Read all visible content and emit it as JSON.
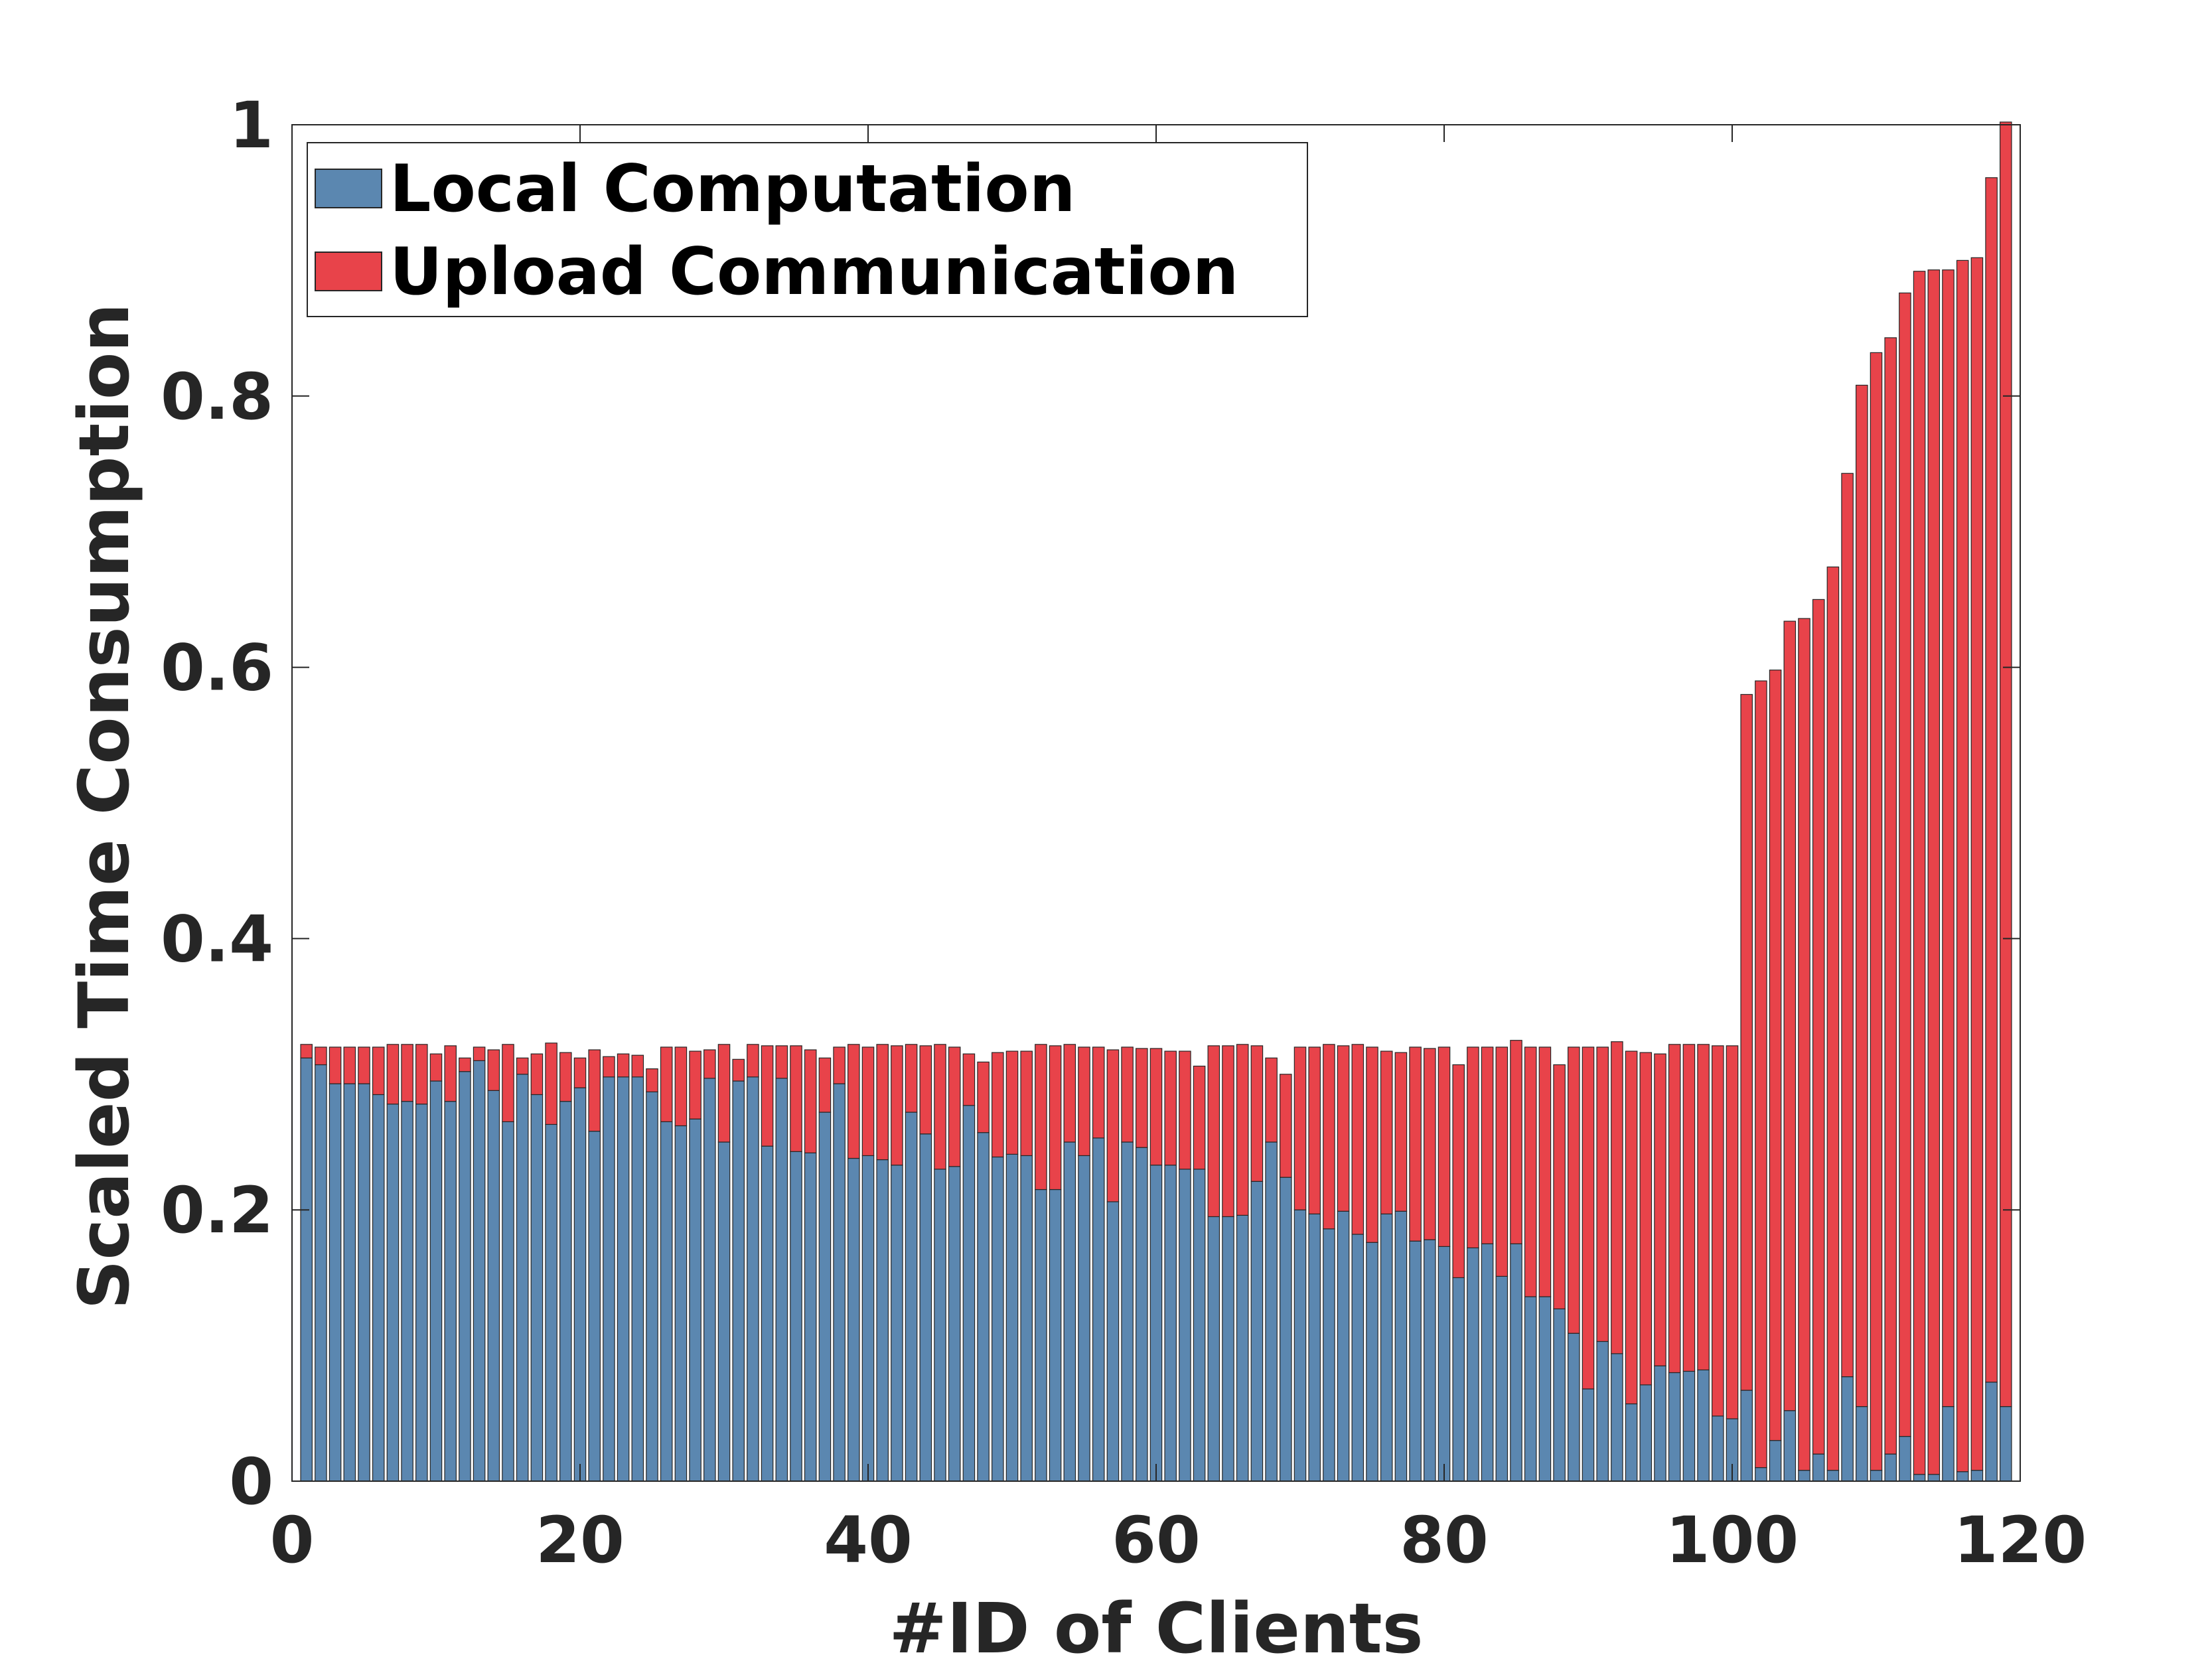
{
  "chart_data": {
    "type": "bar",
    "stacked": true,
    "title": "",
    "xlabel": "#ID of Clients",
    "ylabel": "Scaled Time Consumption",
    "xlim": [
      0,
      120
    ],
    "ylim": [
      0,
      1
    ],
    "xticks": [
      0,
      20,
      40,
      60,
      80,
      100,
      120
    ],
    "xtick_labels": [
      "0",
      "20",
      "40",
      "60",
      "80",
      "100",
      "120"
    ],
    "yticks": [
      0,
      0.2,
      0.4,
      0.6,
      0.8,
      1
    ],
    "ytick_labels": [
      "0",
      "0.2",
      "0.4",
      "0.6",
      "0.8",
      "1"
    ],
    "grid": false,
    "legend_position": "top-left",
    "x": [
      1,
      2,
      3,
      4,
      5,
      6,
      7,
      8,
      9,
      10,
      11,
      12,
      13,
      14,
      15,
      16,
      17,
      18,
      19,
      20,
      21,
      22,
      23,
      24,
      25,
      26,
      27,
      28,
      29,
      30,
      31,
      32,
      33,
      34,
      35,
      36,
      37,
      38,
      39,
      40,
      41,
      42,
      43,
      44,
      45,
      46,
      47,
      48,
      49,
      50,
      51,
      52,
      53,
      54,
      55,
      56,
      57,
      58,
      59,
      60,
      61,
      62,
      63,
      64,
      65,
      66,
      67,
      68,
      69,
      70,
      71,
      72,
      73,
      74,
      75,
      76,
      77,
      78,
      79,
      80,
      81,
      82,
      83,
      84,
      85,
      86,
      87,
      88,
      89,
      90,
      91,
      92,
      93,
      94,
      95,
      96,
      97,
      98,
      99,
      100,
      101,
      102,
      103,
      104,
      105,
      106,
      107,
      108,
      109,
      110,
      111,
      112,
      113,
      114,
      115,
      116,
      117,
      118,
      119
    ],
    "series": [
      {
        "name": "Local Computation",
        "color": "#5b87b0",
        "values": [
          0.312,
          0.307,
          0.293,
          0.293,
          0.293,
          0.285,
          0.278,
          0.28,
          0.278,
          0.295,
          0.28,
          0.302,
          0.31,
          0.288,
          0.265,
          0.3,
          0.285,
          0.263,
          0.28,
          0.29,
          0.258,
          0.298,
          0.298,
          0.298,
          0.287,
          0.265,
          0.262,
          0.267,
          0.297,
          0.25,
          0.295,
          0.298,
          0.247,
          0.297,
          0.243,
          0.242,
          0.272,
          0.293,
          0.238,
          0.24,
          0.237,
          0.233,
          0.272,
          0.256,
          0.23,
          0.232,
          0.277,
          0.257,
          0.239,
          0.241,
          0.24,
          0.215,
          0.215,
          0.25,
          0.24,
          0.253,
          0.206,
          0.25,
          0.246,
          0.233,
          0.233,
          0.23,
          0.23,
          0.195,
          0.195,
          0.196,
          0.221,
          0.25,
          0.224,
          0.2,
          0.197,
          0.186,
          0.199,
          0.182,
          0.176,
          0.197,
          0.199,
          0.177,
          0.178,
          0.173,
          0.15,
          0.172,
          0.175,
          0.151,
          0.175,
          0.136,
          0.136,
          0.127,
          0.109,
          0.068,
          0.103,
          0.094,
          0.057,
          0.071,
          0.085,
          0.08,
          0.081,
          0.082,
          0.048,
          0.046,
          0.067,
          0.01,
          0.03,
          0.052,
          0.008,
          0.02,
          0.008,
          0.077,
          0.055,
          0.008,
          0.02,
          0.033,
          0.005,
          0.005,
          0.055,
          0.007,
          0.008,
          0.073,
          0.055
        ]
      },
      {
        "name": "Upload Communication",
        "color": "#e8434a",
        "values": [
          0.01,
          0.013,
          0.027,
          0.027,
          0.027,
          0.035,
          0.044,
          0.042,
          0.044,
          0.02,
          0.041,
          0.01,
          0.01,
          0.03,
          0.057,
          0.012,
          0.03,
          0.06,
          0.036,
          0.022,
          0.06,
          0.015,
          0.017,
          0.016,
          0.017,
          0.055,
          0.058,
          0.05,
          0.021,
          0.072,
          0.016,
          0.024,
          0.074,
          0.024,
          0.078,
          0.076,
          0.04,
          0.027,
          0.084,
          0.08,
          0.085,
          0.088,
          0.05,
          0.065,
          0.092,
          0.088,
          0.038,
          0.052,
          0.077,
          0.076,
          0.077,
          0.107,
          0.106,
          0.072,
          0.08,
          0.067,
          0.112,
          0.07,
          0.073,
          0.086,
          0.084,
          0.087,
          0.076,
          0.126,
          0.126,
          0.126,
          0.1,
          0.062,
          0.076,
          0.12,
          0.123,
          0.136,
          0.122,
          0.14,
          0.144,
          0.12,
          0.117,
          0.143,
          0.141,
          0.147,
          0.157,
          0.148,
          0.145,
          0.169,
          0.15,
          0.184,
          0.184,
          0.18,
          0.211,
          0.252,
          0.217,
          0.23,
          0.26,
          0.245,
          0.23,
          0.242,
          0.241,
          0.24,
          0.273,
          0.275,
          0.513,
          0.58,
          0.568,
          0.582,
          0.628,
          0.63,
          0.666,
          0.666,
          0.753,
          0.824,
          0.823,
          0.843,
          0.887,
          0.888,
          0.838,
          0.893,
          0.894,
          0.888,
          0.947
        ]
      }
    ]
  }
}
